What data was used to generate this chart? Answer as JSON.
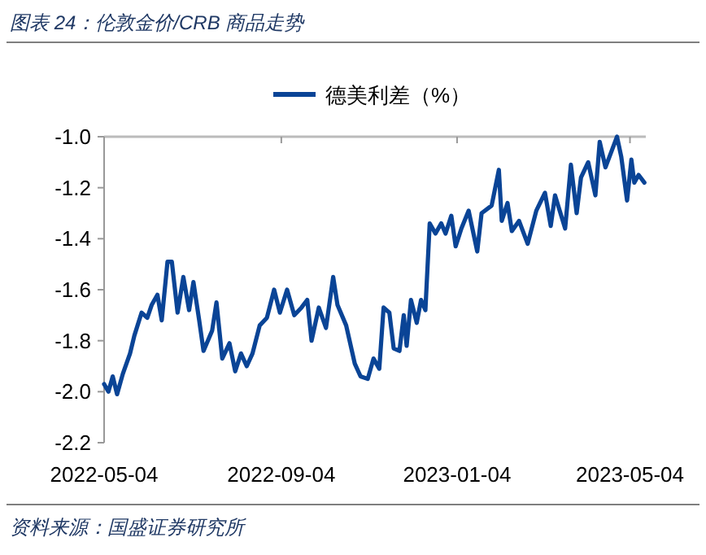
{
  "chart_data": {
    "type": "line",
    "title": "图表 24：伦敦金价/CRB 商品走势",
    "annotations": [
      "资料来源：国盛证券研究所"
    ],
    "x": [
      "2022-05-04",
      "2022-05-07",
      "2022-05-10",
      "2022-05-13",
      "2022-05-17",
      "2022-05-22",
      "2022-05-25",
      "2022-05-30",
      "2022-06-03",
      "2022-06-06",
      "2022-06-10",
      "2022-06-13",
      "2022-06-17",
      "2022-06-20",
      "2022-06-24",
      "2022-06-28",
      "2022-07-02",
      "2022-07-05",
      "2022-07-09",
      "2022-07-12",
      "2022-07-18",
      "2022-07-21",
      "2022-07-25",
      "2022-07-30",
      "2022-08-03",
      "2022-08-07",
      "2022-08-11",
      "2022-08-15",
      "2022-08-20",
      "2022-08-25",
      "2022-08-30",
      "2022-09-03",
      "2022-09-08",
      "2022-09-13",
      "2022-09-18",
      "2022-09-22",
      "2022-09-25",
      "2022-09-30",
      "2022-10-05",
      "2022-10-10",
      "2022-10-13",
      "2022-10-19",
      "2022-10-25",
      "2022-10-29",
      "2022-11-03",
      "2022-11-07",
      "2022-11-11",
      "2022-11-14",
      "2022-11-18",
      "2022-11-21",
      "2022-11-25",
      "2022-11-28",
      "2022-11-30",
      "2022-12-03",
      "2022-12-07",
      "2022-12-10",
      "2022-12-13",
      "2022-12-16",
      "2022-12-20",
      "2022-12-24",
      "2022-12-27",
      "2022-12-31",
      "2023-01-03",
      "2023-01-07",
      "2023-01-12",
      "2023-01-18",
      "2023-01-21",
      "2023-01-28",
      "2023-02-02",
      "2023-02-04",
      "2023-02-08",
      "2023-02-11",
      "2023-02-16",
      "2023-02-22",
      "2023-02-28",
      "2023-03-06",
      "2023-03-10",
      "2023-03-13",
      "2023-03-20",
      "2023-03-24",
      "2023-03-28",
      "2023-03-31",
      "2023-04-05",
      "2023-04-10",
      "2023-04-13",
      "2023-04-17",
      "2023-04-21",
      "2023-04-25",
      "2023-04-28",
      "2023-05-02",
      "2023-05-05",
      "2023-05-07",
      "2023-05-10",
      "2023-05-14"
    ],
    "series": [
      {
        "name": "德美利差（%）",
        "color": "#0a4496",
        "values": [
          -1.97,
          -2.0,
          -1.94,
          -2.01,
          -1.93,
          -1.85,
          -1.78,
          -1.69,
          -1.71,
          -1.66,
          -1.62,
          -1.72,
          -1.49,
          -1.49,
          -1.69,
          -1.55,
          -1.68,
          -1.57,
          -1.72,
          -1.84,
          -1.76,
          -1.65,
          -1.87,
          -1.81,
          -1.92,
          -1.85,
          -1.9,
          -1.85,
          -1.74,
          -1.71,
          -1.6,
          -1.69,
          -1.6,
          -1.7,
          -1.67,
          -1.64,
          -1.8,
          -1.67,
          -1.75,
          -1.55,
          -1.66,
          -1.74,
          -1.89,
          -1.94,
          -1.95,
          -1.87,
          -1.91,
          -1.67,
          -1.69,
          -1.83,
          -1.84,
          -1.7,
          -1.82,
          -1.64,
          -1.73,
          -1.64,
          -1.68,
          -1.34,
          -1.38,
          -1.34,
          -1.38,
          -1.31,
          -1.43,
          -1.36,
          -1.29,
          -1.45,
          -1.3,
          -1.27,
          -1.13,
          -1.33,
          -1.26,
          -1.37,
          -1.33,
          -1.42,
          -1.29,
          -1.22,
          -1.35,
          -1.23,
          -1.36,
          -1.11,
          -1.3,
          -1.16,
          -1.1,
          -1.23,
          -1.02,
          -1.12,
          -1.06,
          -1.0,
          -1.08,
          -1.25,
          -1.09,
          -1.18,
          -1.15,
          -1.18
        ]
      }
    ],
    "xlim": [
      "2022-05-04",
      "2023-05-15"
    ],
    "xticks": [
      "2022-05-04",
      "2022-09-04",
      "2023-01-04",
      "2023-05-04"
    ],
    "ylim": [
      -2.2,
      -1.0
    ],
    "yticks": [
      -2.2,
      {
        "value": -2,
        "label": "-2.0"
      },
      -1.8,
      -1.6,
      -1.4,
      -1.2,
      {
        "value": -1,
        "label": "-1.0"
      }
    ],
    "grid": false,
    "legend": "top",
    "marker": "none",
    "line_style": "solid"
  }
}
